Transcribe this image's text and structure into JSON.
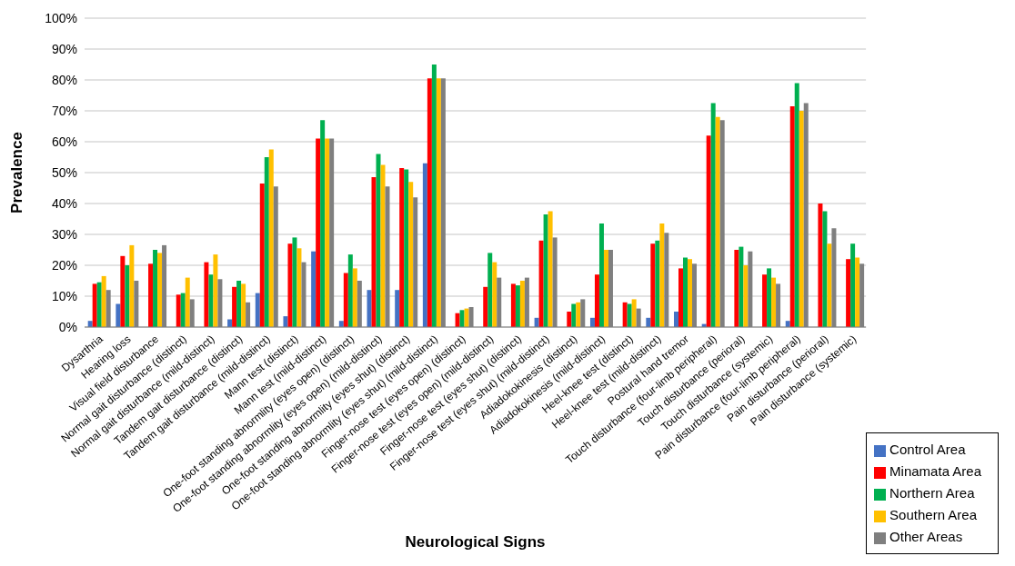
{
  "chart_data": {
    "type": "bar",
    "xlabel": "Neurological Signs",
    "ylabel": "Prevalence",
    "categories": [
      "Dysarthria",
      "Hearing loss",
      "Visual field disturbance",
      "Normal gait disturbance (distinct)",
      "Normal gait disturbance (mild-distinct)",
      "Tandem gait disturbance (distinct)",
      "Tandem gait disturbance (mild-distinct)",
      "Mann test (distinct)",
      "Mann test (mild-distinct)",
      "One-foot standing abnormlity (eyes open) (distinct)",
      "One-foot standing abnormlity (eyes open) (mild-distinct)",
      "One-foot standing abnormlity (eyes shut) (distinct)",
      "One-foot standing abnormlity (eyes shut) (mild-distinct)",
      "Finger-nose test (eyes open) (distinct)",
      "Finger-nose test (eyes open) (mild-distinct)",
      "Finger-nose test (eyes shut) (distinct)",
      "Finger-nose test (eyes shut) (mild-distinct)",
      "Adiadokokinesis (distinct)",
      "Adiadokokinesis (mild-distinct)",
      "Heel-knee test (distinct)",
      "Heel-knee test (mild-distinct)",
      "Postural hand tremor",
      "Touch disturbance (four-limb peripheral)",
      "Touch disturbance (perioral)",
      "Touch disturbance (systemic)",
      "Pain disturbance (four-limb peripheral)",
      "Pain disturbance (perioral)",
      "Pain disturbance (systemic)"
    ],
    "series": [
      {
        "name": "Control Area",
        "color": "#4472c4",
        "values": [
          2,
          7.5,
          0,
          0,
          0,
          2.5,
          11,
          3.5,
          24.5,
          2,
          12,
          12,
          53,
          0,
          0,
          0,
          3,
          0,
          3,
          0,
          3,
          5,
          1,
          0,
          0,
          2,
          0,
          0
        ]
      },
      {
        "name": "Minamata Area",
        "color": "#ff0000",
        "values": [
          14,
          23,
          20.5,
          10.5,
          21,
          13,
          46.5,
          27,
          61,
          17.5,
          48.5,
          51.5,
          80.5,
          4.5,
          13,
          14,
          28,
          5,
          17,
          8,
          27,
          19,
          62,
          25,
          17,
          71.5,
          40,
          22
        ]
      },
      {
        "name": "Northern Area",
        "color": "#00b050",
        "values": [
          14.5,
          20,
          25,
          11,
          17,
          15,
          55,
          29,
          67,
          23.5,
          56,
          51,
          85,
          5.5,
          24,
          13.5,
          36.5,
          7.5,
          33.5,
          7.5,
          28,
          22.5,
          72.5,
          26,
          19,
          79,
          37.5,
          27
        ]
      },
      {
        "name": "Southern Area",
        "color": "#ffc000",
        "values": [
          16.5,
          26.5,
          24,
          16,
          23.5,
          14,
          57.5,
          25.5,
          61,
          19,
          52.5,
          47,
          80.5,
          6,
          21,
          15,
          37.5,
          8,
          25,
          9,
          33.5,
          22,
          68,
          20,
          16,
          70,
          27,
          22.5
        ]
      },
      {
        "name": "Other Areas",
        "color": "#7f7f7f",
        "values": [
          12,
          15,
          26.5,
          9,
          15.5,
          8,
          45.5,
          21,
          61,
          15,
          45.5,
          42,
          80.5,
          6.5,
          16,
          16,
          29,
          9,
          25,
          6,
          30.5,
          20.5,
          67,
          24.5,
          14,
          72.5,
          32,
          20.5
        ]
      }
    ],
    "ylim": [
      0,
      100
    ],
    "yticks": [
      {
        "value": 0,
        "label": "0%"
      },
      {
        "value": 10,
        "label": "10%"
      },
      {
        "value": 20,
        "label": "20%"
      },
      {
        "value": 30,
        "label": "30%"
      },
      {
        "value": 40,
        "label": "40%"
      },
      {
        "value": 50,
        "label": "50%"
      },
      {
        "value": 60,
        "label": "60%"
      },
      {
        "value": 70,
        "label": "70%"
      },
      {
        "value": 80,
        "label": "80%"
      },
      {
        "value": 90,
        "label": "90%"
      },
      {
        "value": 100,
        "label": "100%"
      }
    ],
    "grid": "y",
    "legend": "bottom right"
  }
}
